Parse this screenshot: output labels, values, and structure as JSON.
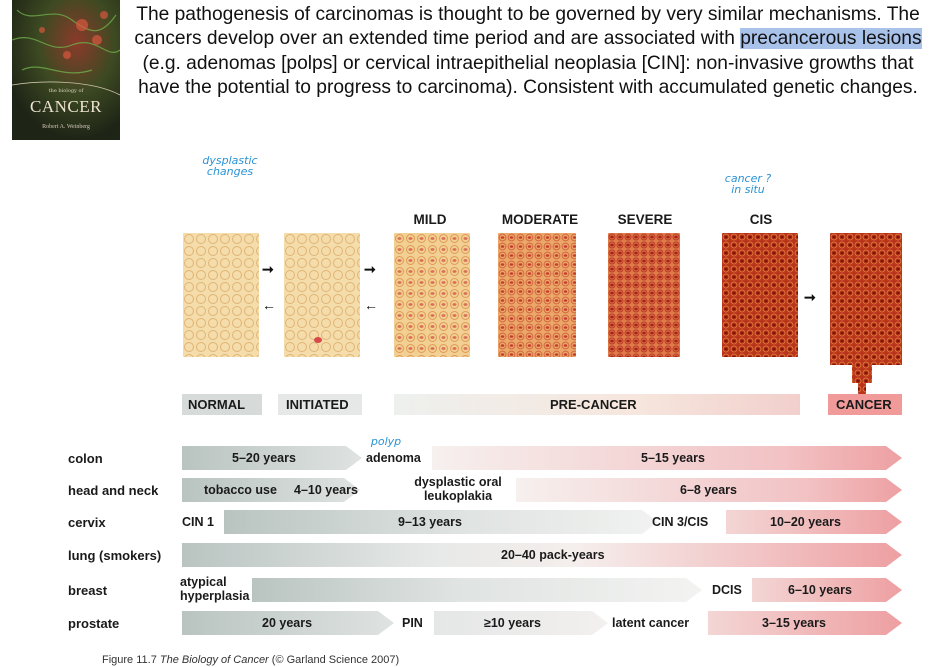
{
  "cover": {
    "subtitle": "the biology of",
    "title": "CANCER",
    "author": "Robert A. Weinberg"
  },
  "intro": {
    "before": "The pathogenesis of carcinomas is thought to be governed by very similar mechanisms. The cancers develop over an extended time period and are associated with ",
    "highlight": "precancerous lesions",
    "after": " (e.g. adenomas [polps] or cervical intraepithelial neoplasia [CIN]: non-invasive growths that have the potential to progress to carcinoma). Consistent with accumulated genetic changes."
  },
  "handwritten": {
    "dysplastic_line1": "dysplastic",
    "dysplastic_line2": "changes",
    "cancer_line1": "cancer ?",
    "cancer_line2": "in situ",
    "polyp": "polyp"
  },
  "stages": {
    "mild": "MILD",
    "moderate": "MODERATE",
    "severe": "SEVERE",
    "cis": "CIS"
  },
  "band": {
    "normal": "NORMAL",
    "initiated": "INITIATED",
    "precancer": "PRE-CANCER",
    "cancer": "CANCER"
  },
  "colors": {
    "tissue_light": "#f3d8a6",
    "tissue_mid": "#e7a05c",
    "tissue_dark": "#a8280f",
    "bar_gray": "#c9d2cf",
    "bar_pink": "#f09a9c"
  },
  "timeline": {
    "colon": {
      "label": "colon",
      "seg1": "5–20 years",
      "seg2": "adenoma",
      "seg3": "5–15 years"
    },
    "head_neck": {
      "label": "head and neck",
      "seg1": "tobacco use",
      "seg2": "4–10 years",
      "seg3_line1": "dysplastic oral",
      "seg3_line2": "leukoplakia",
      "seg4": "6–8 years"
    },
    "cervix": {
      "label": "cervix",
      "seg1": "CIN 1",
      "seg2": "9–13 years",
      "seg3": "CIN 3/CIS",
      "seg4": "10–20 years"
    },
    "lung": {
      "label": "lung (smokers)",
      "seg1": "20–40 pack-years"
    },
    "breast": {
      "label": "breast",
      "seg1_line1": "atypical",
      "seg1_line2": "hyperplasia",
      "seg2": "DCIS",
      "seg3": "6–10 years"
    },
    "prostate": {
      "label": "prostate",
      "seg1": "20 years",
      "seg2": "PIN",
      "seg3": "≥10 years",
      "seg4": "latent cancer",
      "seg5": "3–15 years"
    }
  },
  "caption": {
    "prefix": "Figure 11.7 ",
    "book": "The Biology of Cancer",
    "suffix": " (© Garland Science 2007)"
  }
}
